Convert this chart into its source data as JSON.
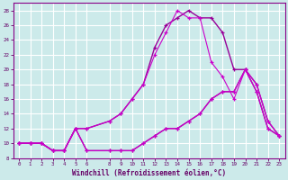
{
  "xlabel": "Windchill (Refroidissement éolien,°C)",
  "bg_color": "#cceaea",
  "grid_color": "#ffffff",
  "xlim": [
    -0.5,
    23.5
  ],
  "ylim": [
    8,
    29
  ],
  "xticks": [
    0,
    1,
    2,
    3,
    4,
    5,
    6,
    8,
    9,
    10,
    11,
    12,
    13,
    14,
    15,
    16,
    17,
    18,
    19,
    20,
    21,
    22,
    23
  ],
  "yticks": [
    8,
    10,
    12,
    14,
    16,
    18,
    20,
    22,
    24,
    26,
    28
  ],
  "figsize": [
    3.2,
    2.0
  ],
  "dpi": 100,
  "series": [
    {
      "x": [
        0,
        1,
        2,
        3,
        4,
        5,
        6,
        8,
        9,
        10,
        11,
        12,
        13,
        14,
        15,
        16,
        17,
        18,
        19,
        20,
        21,
        22,
        23
      ],
      "y": [
        10,
        10,
        10,
        9,
        9,
        12,
        12,
        13,
        14,
        16,
        18,
        23,
        26,
        27,
        28,
        27,
        27,
        25,
        20,
        20,
        18,
        13,
        11
      ],
      "color": "#990099",
      "lw": 1.0
    },
    {
      "x": [
        0,
        1,
        2,
        3,
        4,
        5,
        6,
        8,
        9,
        10,
        11,
        12,
        13,
        14,
        15,
        16,
        17,
        18,
        19,
        20,
        21,
        22,
        23
      ],
      "y": [
        10,
        10,
        10,
        9,
        9,
        12,
        9,
        9,
        9,
        9,
        10,
        11,
        12,
        12,
        13,
        14,
        16,
        17,
        17,
        20,
        17,
        12,
        11
      ],
      "color": "#990099",
      "lw": 1.0
    },
    {
      "x": [
        0,
        1,
        2,
        3,
        4,
        5,
        6,
        8,
        9,
        10,
        11,
        12,
        13,
        14,
        15,
        16,
        17,
        18,
        19,
        20,
        21,
        22,
        23
      ],
      "y": [
        10,
        10,
        10,
        9,
        9,
        12,
        12,
        13,
        14,
        16,
        18,
        22,
        25,
        28,
        27,
        27,
        21,
        19,
        16,
        20,
        18,
        13,
        11
      ],
      "color": "#cc00cc",
      "lw": 0.8
    },
    {
      "x": [
        0,
        1,
        2,
        3,
        4,
        5,
        6,
        8,
        9,
        10,
        11,
        12,
        13,
        14,
        15,
        16,
        17,
        18,
        19,
        20,
        21,
        22,
        23
      ],
      "y": [
        10,
        10,
        10,
        9,
        9,
        12,
        9,
        9,
        9,
        9,
        10,
        11,
        12,
        12,
        13,
        14,
        16,
        17,
        17,
        20,
        17,
        12,
        11
      ],
      "color": "#cc00cc",
      "lw": 0.8
    }
  ]
}
